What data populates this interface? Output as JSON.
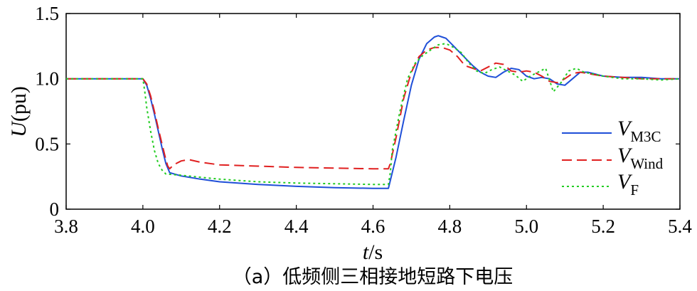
{
  "chart_data": {
    "type": "line",
    "title": "",
    "caption": "（a）低频侧三相接地短路下电压",
    "xlabel": {
      "var": "t",
      "unit": "/s"
    },
    "ylabel": {
      "var": "U",
      "unit": "(pu)"
    },
    "xlim": [
      3.8,
      5.4
    ],
    "ylim": [
      0,
      1.5
    ],
    "xticks": [
      "3.8",
      "4.0",
      "4.2",
      "4.4",
      "4.6",
      "4.8",
      "5.0",
      "5.2",
      "5.4"
    ],
    "yticks": [
      "0",
      "0.5",
      "1.0",
      "1.5"
    ],
    "grid": false,
    "legend_position": "right",
    "series": [
      {
        "name": "M3C",
        "name_main": "V",
        "name_sub": "M3C",
        "color": "#1f4fd8",
        "style": "solid",
        "x": [
          3.8,
          4.0,
          4.01,
          4.02,
          4.03,
          4.04,
          4.05,
          4.06,
          4.07,
          4.1,
          4.15,
          4.2,
          4.3,
          4.4,
          4.5,
          4.6,
          4.64,
          4.645,
          4.66,
          4.68,
          4.7,
          4.72,
          4.74,
          4.76,
          4.77,
          4.78,
          4.79,
          4.8,
          4.82,
          4.84,
          4.86,
          4.88,
          4.9,
          4.92,
          4.94,
          4.96,
          4.98,
          5.0,
          5.02,
          5.04,
          5.06,
          5.08,
          5.1,
          5.12,
          5.14,
          5.16,
          5.2,
          5.25,
          5.3,
          5.35,
          5.4
        ],
        "y": [
          1.0,
          1.0,
          0.95,
          0.85,
          0.73,
          0.6,
          0.47,
          0.35,
          0.28,
          0.255,
          0.23,
          0.21,
          0.19,
          0.175,
          0.165,
          0.16,
          0.16,
          0.22,
          0.4,
          0.68,
          0.95,
          1.15,
          1.27,
          1.32,
          1.33,
          1.32,
          1.31,
          1.28,
          1.22,
          1.16,
          1.1,
          1.05,
          1.02,
          1.01,
          1.05,
          1.08,
          1.07,
          1.02,
          1.0,
          1.01,
          1.0,
          0.96,
          0.95,
          1.0,
          1.05,
          1.05,
          1.02,
          1.01,
          1.01,
          1.0,
          1.0
        ]
      },
      {
        "name": "Wind",
        "name_main": "V",
        "name_sub": "Wind",
        "color": "#e02020",
        "style": "dashed",
        "x": [
          3.8,
          4.0,
          4.01,
          4.02,
          4.03,
          4.04,
          4.05,
          4.06,
          4.065,
          4.07,
          4.08,
          4.1,
          4.12,
          4.15,
          4.2,
          4.3,
          4.4,
          4.5,
          4.6,
          4.64,
          4.645,
          4.66,
          4.68,
          4.7,
          4.72,
          4.74,
          4.76,
          4.78,
          4.8,
          4.82,
          4.84,
          4.86,
          4.88,
          4.9,
          4.92,
          4.94,
          4.96,
          4.98,
          5.0,
          5.02,
          5.04,
          5.06,
          5.08,
          5.1,
          5.12,
          5.14,
          5.16,
          5.2,
          5.25,
          5.3,
          5.35,
          5.4
        ],
        "y": [
          1.0,
          1.0,
          0.96,
          0.87,
          0.75,
          0.62,
          0.5,
          0.38,
          0.33,
          0.31,
          0.34,
          0.37,
          0.38,
          0.36,
          0.34,
          0.33,
          0.32,
          0.315,
          0.31,
          0.31,
          0.35,
          0.55,
          0.85,
          1.05,
          1.17,
          1.22,
          1.24,
          1.24,
          1.22,
          1.17,
          1.1,
          1.08,
          1.06,
          1.09,
          1.12,
          1.11,
          1.06,
          1.05,
          1.06,
          1.05,
          1.02,
          0.98,
          0.97,
          1.0,
          1.04,
          1.05,
          1.04,
          1.02,
          1.01,
          1.0,
          1.0,
          1.0
        ]
      },
      {
        "name": "F",
        "name_main": "V",
        "name_sub": "F",
        "color": "#22cc22",
        "style": "dotted",
        "x": [
          3.8,
          4.0,
          4.005,
          4.01,
          4.02,
          4.03,
          4.04,
          4.05,
          4.06,
          4.08,
          4.1,
          4.15,
          4.2,
          4.3,
          4.4,
          4.5,
          4.6,
          4.64,
          4.645,
          4.65,
          4.67,
          4.69,
          4.71,
          4.73,
          4.75,
          4.77,
          4.79,
          4.81,
          4.83,
          4.85,
          4.87,
          4.89,
          4.91,
          4.93,
          4.95,
          4.97,
          4.99,
          5.01,
          5.03,
          5.05,
          5.07,
          5.09,
          5.11,
          5.13,
          5.15,
          5.2,
          5.25,
          5.3,
          5.35,
          5.4
        ],
        "y": [
          1.0,
          1.0,
          0.9,
          0.78,
          0.6,
          0.45,
          0.35,
          0.3,
          0.27,
          0.265,
          0.26,
          0.245,
          0.23,
          0.21,
          0.2,
          0.195,
          0.19,
          0.19,
          0.28,
          0.45,
          0.75,
          1.0,
          1.12,
          1.18,
          1.22,
          1.26,
          1.27,
          1.24,
          1.2,
          1.12,
          1.06,
          1.04,
          1.07,
          1.09,
          1.06,
          1.03,
          0.98,
          1.02,
          1.05,
          1.08,
          0.9,
          0.97,
          1.06,
          1.08,
          1.05,
          1.02,
          1.0,
          1.0,
          0.99,
          1.0
        ]
      }
    ]
  }
}
